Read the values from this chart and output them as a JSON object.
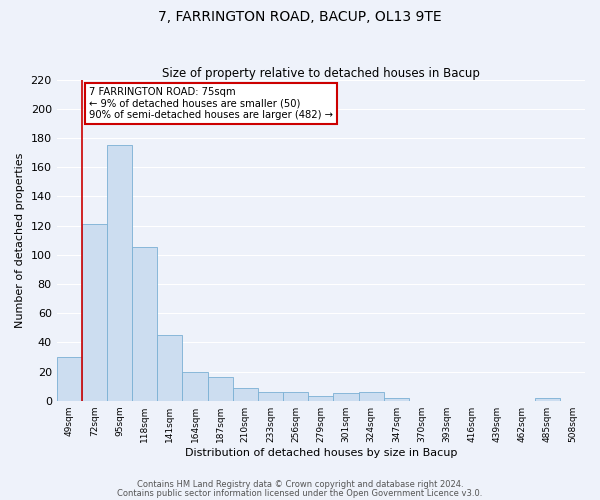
{
  "title": "7, FARRINGTON ROAD, BACUP, OL13 9TE",
  "subtitle": "Size of property relative to detached houses in Bacup",
  "xlabel": "Distribution of detached houses by size in Bacup",
  "ylabel": "Number of detached properties",
  "bin_labels": [
    "49sqm",
    "72sqm",
    "95sqm",
    "118sqm",
    "141sqm",
    "164sqm",
    "187sqm",
    "210sqm",
    "233sqm",
    "256sqm",
    "279sqm",
    "301sqm",
    "324sqm",
    "347sqm",
    "370sqm",
    "393sqm",
    "416sqm",
    "439sqm",
    "462sqm",
    "485sqm",
    "508sqm"
  ],
  "bar_values": [
    30,
    121,
    175,
    105,
    45,
    20,
    16,
    9,
    6,
    6,
    3,
    5,
    6,
    2,
    0,
    0,
    0,
    0,
    0,
    2,
    0
  ],
  "bar_color": "#ccddf0",
  "bar_edge_color": "#7ab0d4",
  "ylim": [
    0,
    220
  ],
  "yticks": [
    0,
    20,
    40,
    60,
    80,
    100,
    120,
    140,
    160,
    180,
    200,
    220
  ],
  "vline_x_idx": 1,
  "vline_color": "#cc0000",
  "annotation_text": "7 FARRINGTON ROAD: 75sqm\n← 9% of detached houses are smaller (50)\n90% of semi-detached houses are larger (482) →",
  "annotation_box_color": "#ffffff",
  "annotation_box_edge": "#cc0000",
  "footer_line1": "Contains HM Land Registry data © Crown copyright and database right 2024.",
  "footer_line2": "Contains public sector information licensed under the Open Government Licence v3.0.",
  "bg_color": "#eef2fa",
  "grid_color": "#ffffff"
}
